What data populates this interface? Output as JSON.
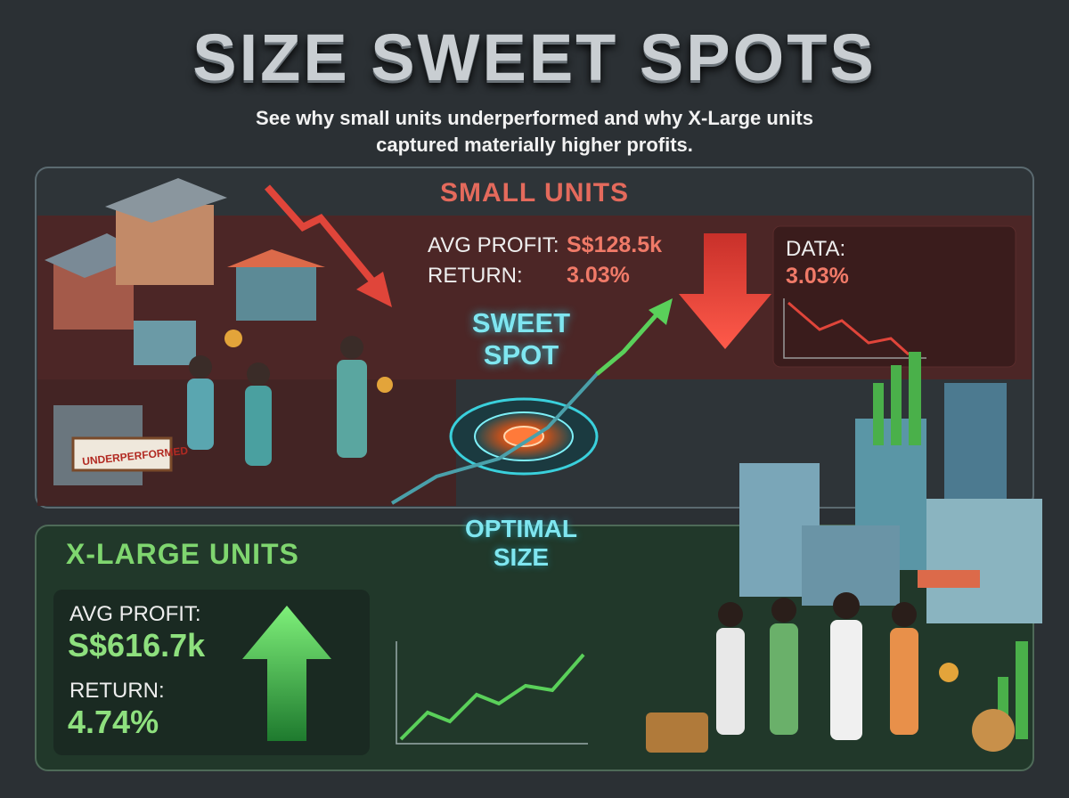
{
  "header": {
    "title": "SIZE SWEET SPOTS",
    "subtitle": "See why small units underperformed and why X-Large units captured materially higher profits."
  },
  "small_units": {
    "title": "SMALL UNITS",
    "avg_profit_label": "AVG PROFIT:",
    "avg_profit": "S$128.5k",
    "return_label": "RETURN:",
    "return": "3.03%",
    "data_label": "DATA:",
    "data_value": "3.03%",
    "sign": "UNDERPERFORMED"
  },
  "sweet_spot": {
    "title": "SWEET SPOT",
    "caption": "OPTIMAL SIZE"
  },
  "xlarge_units": {
    "title": "X-LARGE UNITS",
    "avg_profit_label": "AVG PROFIT:",
    "avg_profit": "S$616.7k",
    "return_label": "RETURN:",
    "return": "4.74%"
  }
}
